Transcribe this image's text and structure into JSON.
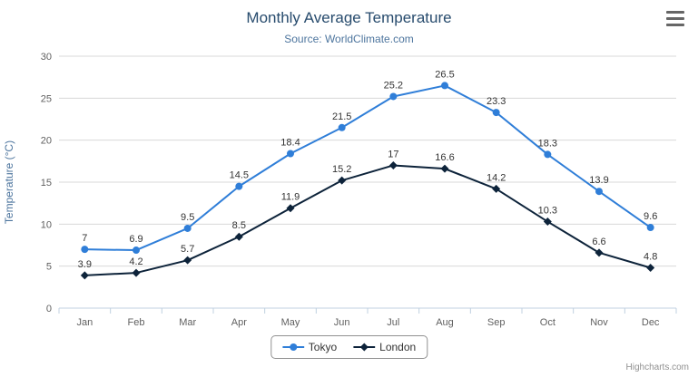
{
  "chart_data": {
    "type": "line",
    "title": "Monthly Average Temperature",
    "subtitle": "Source: WorldClimate.com",
    "categories": [
      "Jan",
      "Feb",
      "Mar",
      "Apr",
      "May",
      "Jun",
      "Jul",
      "Aug",
      "Sep",
      "Oct",
      "Nov",
      "Dec"
    ],
    "series": [
      {
        "name": "Tokyo",
        "color": "#2f7ed8",
        "marker": "circle",
        "values": [
          7,
          6.9,
          9.5,
          14.5,
          18.4,
          21.5,
          25.2,
          26.5,
          23.3,
          18.3,
          13.9,
          9.6
        ]
      },
      {
        "name": "London",
        "color": "#0d233a",
        "marker": "diamond",
        "values": [
          3.9,
          4.2,
          5.7,
          8.5,
          11.9,
          15.2,
          17,
          16.6,
          14.2,
          10.3,
          6.6,
          4.8
        ]
      }
    ],
    "xlabel": "",
    "ylabel": "Temperature (°C)",
    "ylim": [
      0,
      30
    ],
    "ytick": 5,
    "grid": true,
    "legend_position": "bottom",
    "data_labels": true
  },
  "colors": {
    "background": "#ffffff",
    "title": "#274b6d",
    "subtitle": "#4d759e",
    "ylabel": "#4d759e",
    "axis_label": "#606060",
    "grid": "#d8d8d8",
    "axis_line": "#c0d0e0",
    "tick": "#c0d0e0",
    "data_label": "#333333",
    "legend_border": "#909090",
    "legend_text": "#333333",
    "credits": "#909090",
    "menu_icon": "#666666"
  },
  "credits": {
    "text": "Highcharts.com"
  },
  "export_menu": {
    "icon": "hamburger-icon"
  }
}
